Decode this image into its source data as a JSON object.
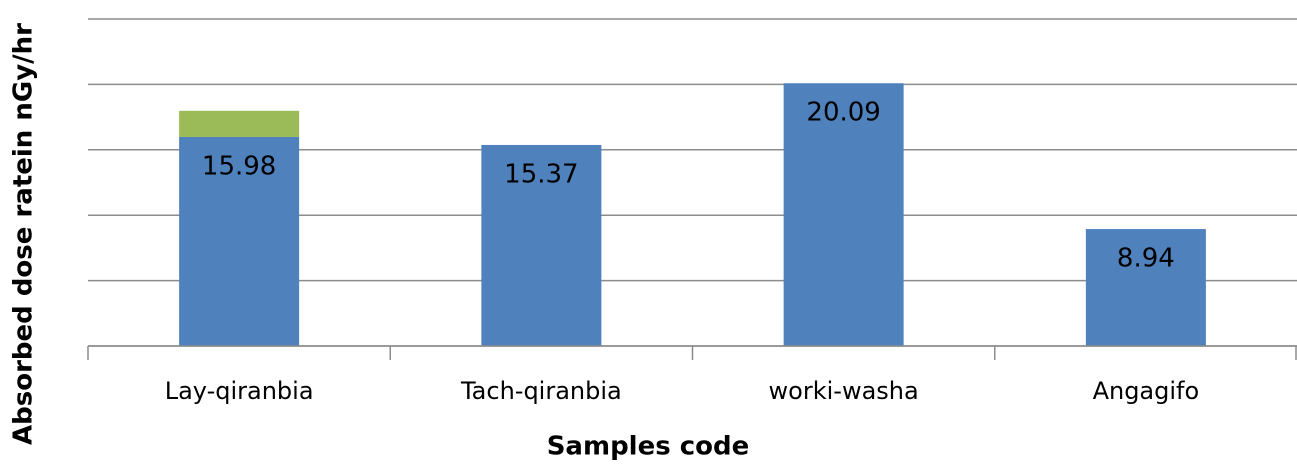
{
  "chart_data": {
    "type": "bar",
    "stacked": true,
    "x_label": "Samples code",
    "y_label": "Absorbed dose ratein nGy/hr",
    "categories": [
      "Lay-qiranbia",
      "Tach-qiranbia",
      "worki-washa",
      "Angagifo"
    ],
    "series": [
      {
        "color": "#4f81bd",
        "values": [
          15.98,
          15.37,
          20.09,
          8.94
        ],
        "show_labels": true
      },
      {
        "color": "#9bbb59",
        "values": [
          2.0,
          null,
          null,
          null
        ],
        "show_labels": false
      }
    ],
    "ylim": [
      0,
      25
    ],
    "yticks": [
      0,
      5,
      10,
      15,
      20,
      25
    ],
    "grid": true
  }
}
